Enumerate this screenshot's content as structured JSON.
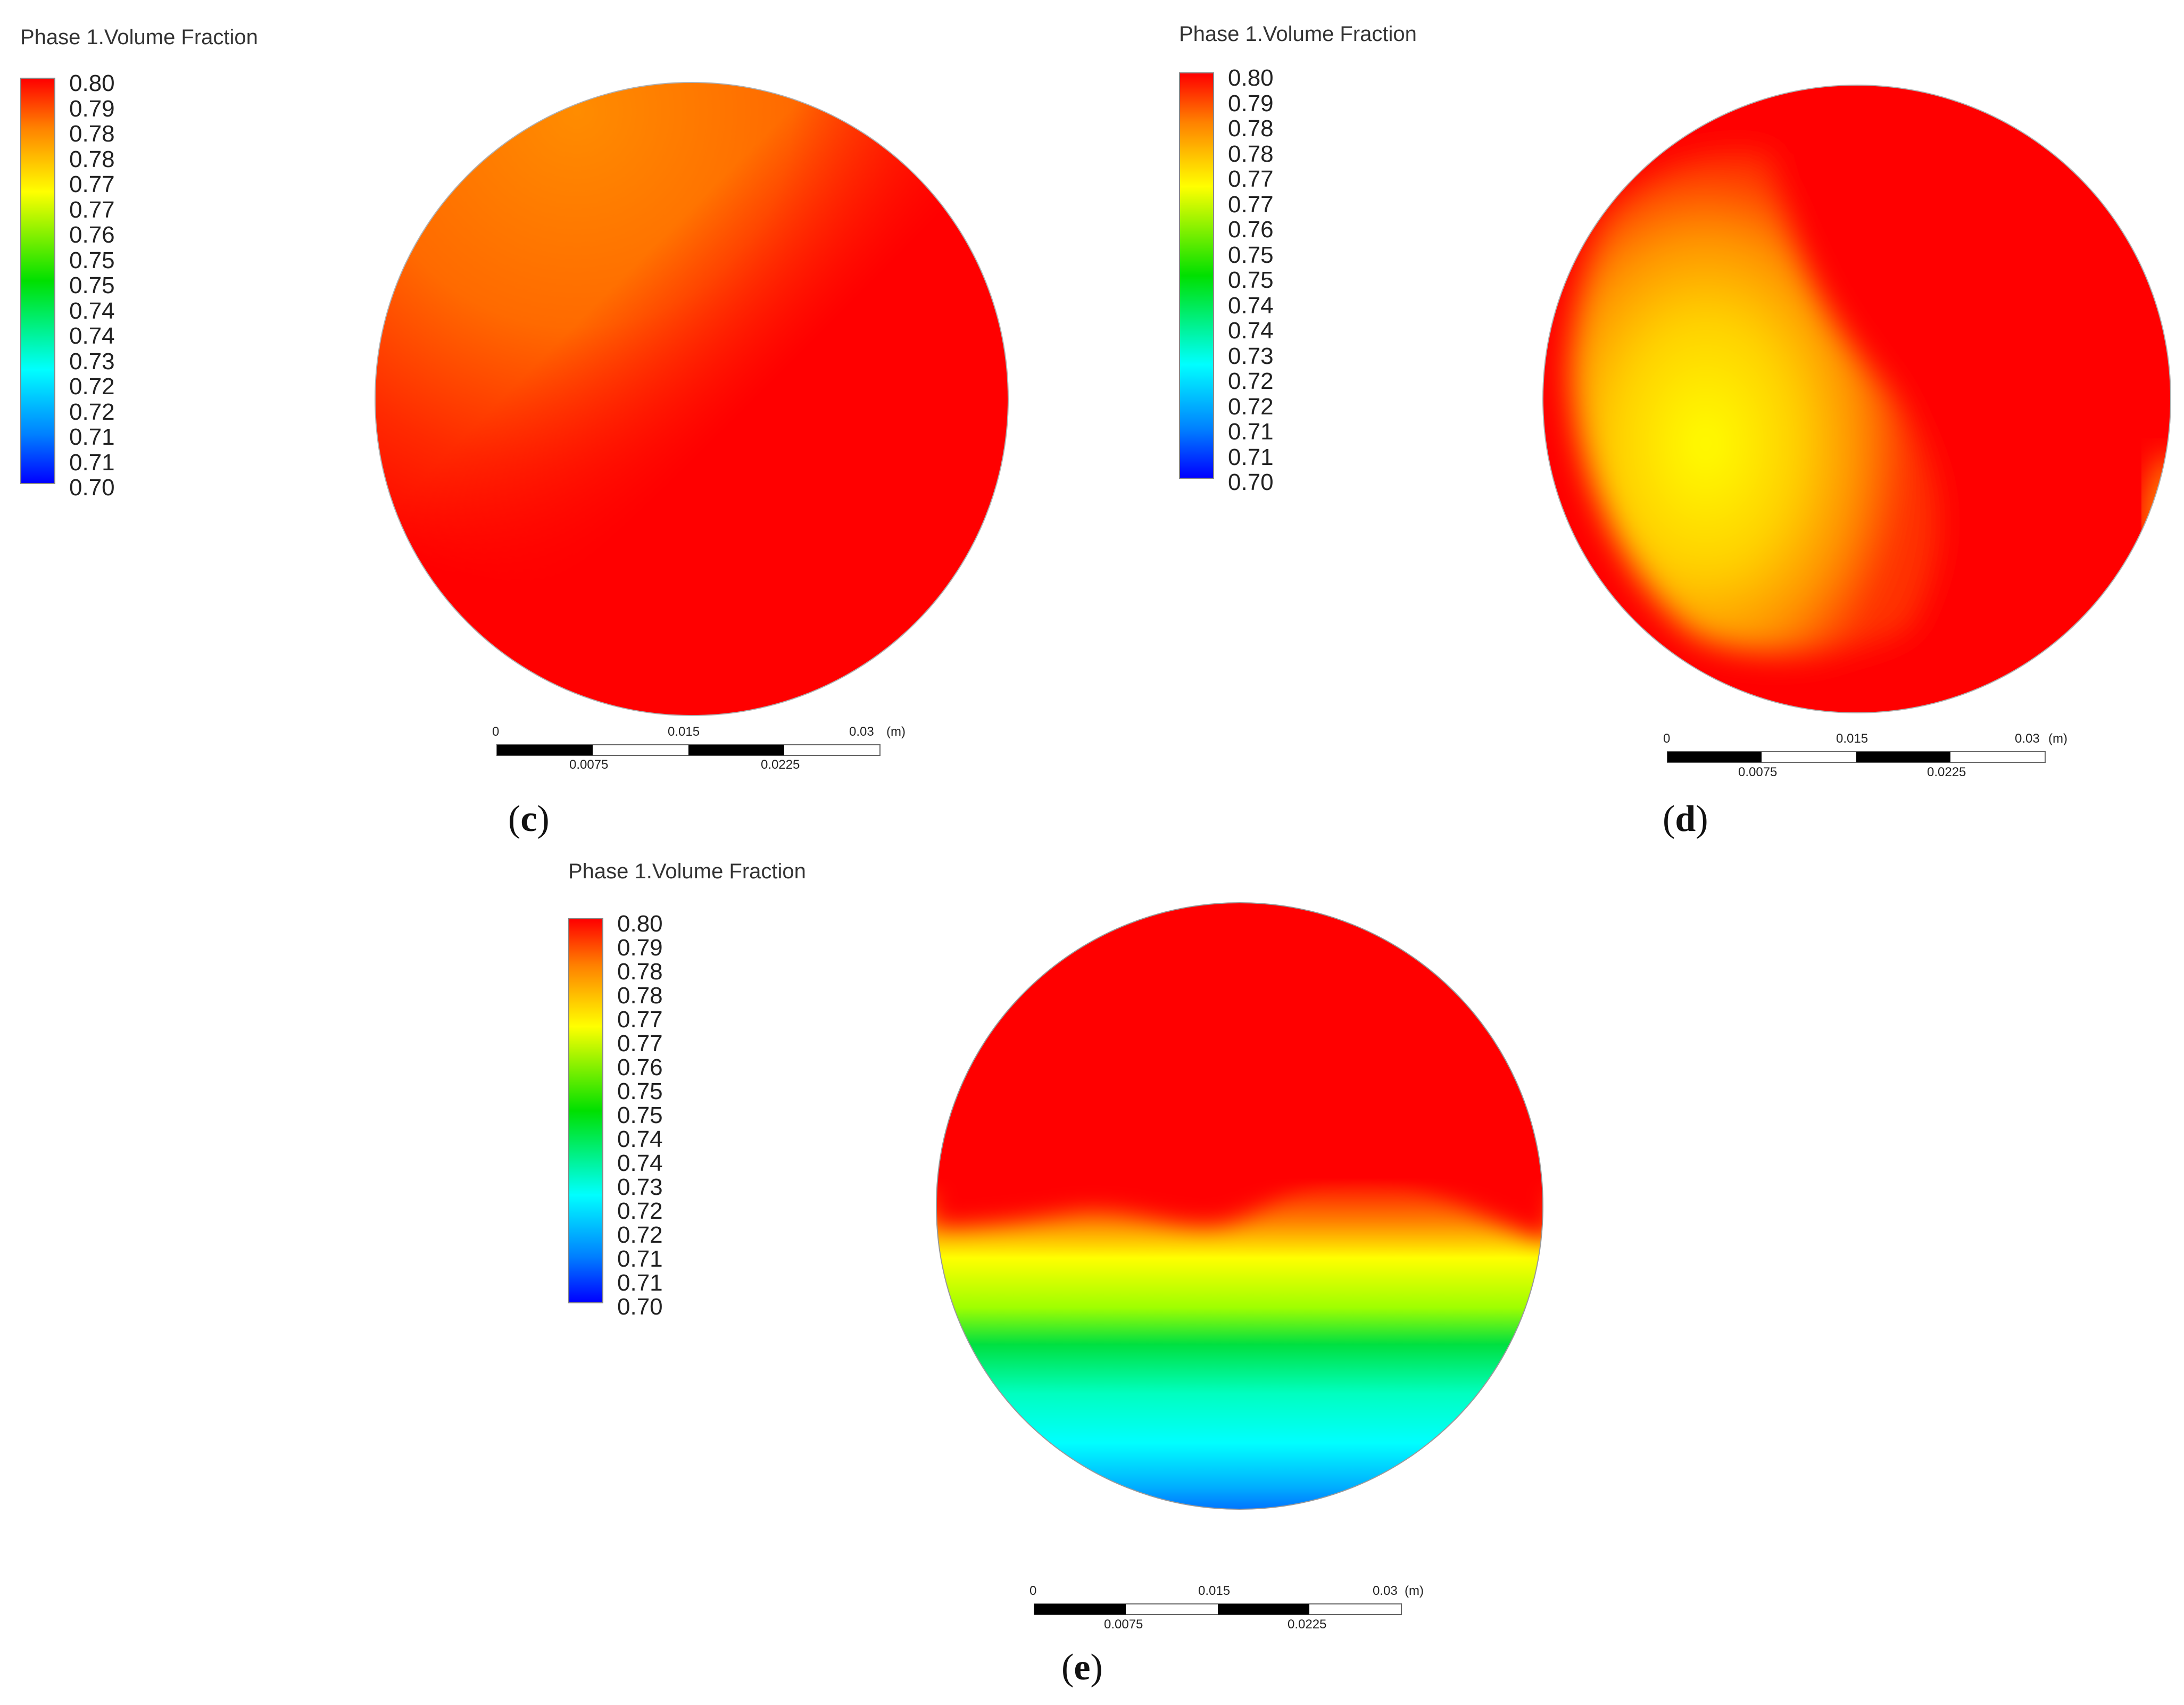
{
  "panels": [
    {
      "id": "c",
      "caption_letter": "c",
      "legend_title": "Phase 1.Volume Fraction",
      "legend_ticks": [
        "0.80",
        "0.79",
        "0.78",
        "0.78",
        "0.77",
        "0.77",
        "0.76",
        "0.75",
        "0.75",
        "0.74",
        "0.74",
        "0.73",
        "0.72",
        "0.72",
        "0.71",
        "0.71",
        "0.70"
      ],
      "scale_top": [
        "0",
        "0.015",
        "0.03",
        "(m)"
      ],
      "scale_bottom": [
        "0.0075",
        "0.0225"
      ]
    },
    {
      "id": "d",
      "caption_letter": "d",
      "legend_title": "Phase 1.Volume Fraction",
      "legend_ticks": [
        "0.80",
        "0.79",
        "0.78",
        "0.78",
        "0.77",
        "0.77",
        "0.76",
        "0.75",
        "0.75",
        "0.74",
        "0.74",
        "0.73",
        "0.72",
        "0.72",
        "0.71",
        "0.71",
        "0.70"
      ],
      "scale_top": [
        "0",
        "0.015",
        "0.03",
        "(m)"
      ],
      "scale_bottom": [
        "0.0075",
        "0.0225"
      ]
    },
    {
      "id": "e",
      "caption_letter": "e",
      "legend_title": "Phase 1.Volume Fraction",
      "legend_ticks": [
        "0.80",
        "0.79",
        "0.78",
        "0.78",
        "0.77",
        "0.77",
        "0.76",
        "0.75",
        "0.75",
        "0.74",
        "0.74",
        "0.73",
        "0.72",
        "0.72",
        "0.71",
        "0.71",
        "0.70"
      ],
      "scale_top": [
        "0",
        "0.015",
        "0.03",
        "(m)"
      ],
      "scale_bottom": [
        "0.0075",
        "0.0225"
      ]
    }
  ],
  "colors": {
    "red": "#ff0000",
    "orange": "#ff7a00",
    "yellow": "#ffff00",
    "green": "#00e000",
    "cyan": "#00ffff",
    "blue": "#0055ff"
  }
}
